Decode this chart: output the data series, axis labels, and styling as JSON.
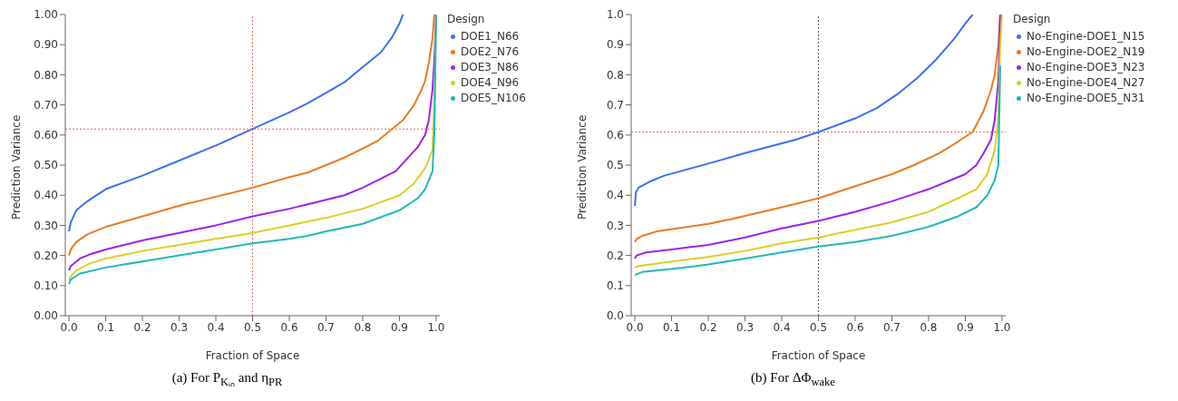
{
  "chart_data": [
    {
      "type": "line",
      "xlabel": "Fraction of Space",
      "ylabel": "Prediction Variance",
      "legend_title": "Design",
      "legend": "right",
      "marker": "none",
      "line_style": "solid",
      "xlim": [
        -0.01,
        1.01
      ],
      "ylim": [
        0,
        1
      ],
      "xticks": [
        {
          "value": 0,
          "label": "0.0"
        },
        {
          "value": 0.1,
          "label": "0.1"
        },
        {
          "value": 0.2,
          "label": "0.2"
        },
        {
          "value": 0.3,
          "label": "0.3"
        },
        {
          "value": 0.4,
          "label": "0.4"
        },
        {
          "value": 0.5,
          "label": "0.5"
        },
        {
          "value": 0.6,
          "label": "0.6"
        },
        {
          "value": 0.7,
          "label": "0.7"
        },
        {
          "value": 0.8,
          "label": "0.8"
        },
        {
          "value": 0.9,
          "label": "0.9"
        },
        {
          "value": 1,
          "label": "1.0"
        }
      ],
      "yticks": [
        {
          "value": 0,
          "label": "0.00"
        },
        {
          "value": 0.1,
          "label": "0.10"
        },
        {
          "value": 0.2,
          "label": "0.20"
        },
        {
          "value": 0.3,
          "label": "0.30"
        },
        {
          "value": 0.4,
          "label": "0.40"
        },
        {
          "value": 0.5,
          "label": "0.50"
        },
        {
          "value": 0.6,
          "label": "0.60"
        },
        {
          "value": 0.7,
          "label": "0.70"
        },
        {
          "value": 0.8,
          "label": "0.80"
        },
        {
          "value": 0.9,
          "label": "0.90"
        },
        {
          "value": 1,
          "label": "1.00"
        }
      ],
      "ref_lines": [
        {
          "axis": "x",
          "value": 0.5,
          "color": "#e06666",
          "line_style": "dotted"
        },
        {
          "axis": "y",
          "value": 0.62,
          "color": "#e06666",
          "line_style": "dotted"
        }
      ],
      "annotations": [
        "(a) For P$_{Kᵢₙ}$ and η$_{PR}$"
      ],
      "series": [
        {
          "name": "DOE1_N66",
          "color": "#3a6ff7",
          "x": [
            0,
            0.005,
            0.02,
            0.05,
            0.1,
            0.2,
            0.3,
            0.4,
            0.5,
            0.6,
            0.65,
            0.7,
            0.75,
            0.8,
            0.85,
            0.88,
            0.9,
            0.91
          ],
          "values": [
            0.28,
            0.31,
            0.35,
            0.38,
            0.42,
            0.465,
            0.515,
            0.565,
            0.62,
            0.675,
            0.705,
            0.74,
            0.775,
            0.825,
            0.875,
            0.925,
            0.97,
            1.0
          ]
        },
        {
          "name": "DOE2_N76",
          "color": "#ee7a1c",
          "x": [
            0,
            0.005,
            0.02,
            0.05,
            0.1,
            0.2,
            0.3,
            0.4,
            0.5,
            0.6,
            0.65,
            0.7,
            0.75,
            0.8,
            0.84,
            0.88,
            0.91,
            0.94,
            0.96,
            0.97,
            0.98,
            0.99,
            0.995
          ],
          "values": [
            0.2,
            0.22,
            0.245,
            0.27,
            0.295,
            0.33,
            0.365,
            0.395,
            0.425,
            0.46,
            0.475,
            0.5,
            0.525,
            0.555,
            0.58,
            0.62,
            0.65,
            0.7,
            0.75,
            0.78,
            0.84,
            0.92,
            1.0
          ]
        },
        {
          "name": "DOE3_N86",
          "color": "#a020f0",
          "x": [
            0,
            0.005,
            0.03,
            0.06,
            0.1,
            0.2,
            0.3,
            0.4,
            0.5,
            0.6,
            0.65,
            0.75,
            0.8,
            0.85,
            0.89,
            0.92,
            0.95,
            0.97,
            0.98,
            0.99,
            0.995,
            1.0
          ],
          "values": [
            0.15,
            0.165,
            0.19,
            0.205,
            0.22,
            0.25,
            0.275,
            0.3,
            0.33,
            0.355,
            0.37,
            0.4,
            0.425,
            0.455,
            0.48,
            0.52,
            0.56,
            0.6,
            0.65,
            0.75,
            0.85,
            1.0
          ]
        },
        {
          "name": "DOE4_N96",
          "color": "#d9d020",
          "x": [
            0,
            0.005,
            0.02,
            0.06,
            0.1,
            0.2,
            0.3,
            0.4,
            0.5,
            0.6,
            0.7,
            0.8,
            0.9,
            0.94,
            0.97,
            0.99,
            0.995,
            1.0
          ],
          "values": [
            0.12,
            0.13,
            0.15,
            0.175,
            0.19,
            0.215,
            0.235,
            0.255,
            0.275,
            0.3,
            0.325,
            0.355,
            0.4,
            0.44,
            0.49,
            0.55,
            0.7,
            1.0
          ]
        },
        {
          "name": "DOE5_N106",
          "color": "#20b8b8",
          "x": [
            0,
            0.005,
            0.03,
            0.1,
            0.15,
            0.2,
            0.3,
            0.4,
            0.5,
            0.6,
            0.65,
            0.7,
            0.8,
            0.9,
            0.95,
            0.97,
            0.99,
            0.995,
            1.0
          ],
          "values": [
            0.105,
            0.12,
            0.14,
            0.16,
            0.17,
            0.18,
            0.2,
            0.22,
            0.24,
            0.255,
            0.265,
            0.28,
            0.305,
            0.35,
            0.39,
            0.42,
            0.48,
            0.6,
            1.0
          ]
        }
      ]
    },
    {
      "type": "line",
      "xlabel": "Fraction of Space",
      "ylabel": "Prediction Variance",
      "legend_title": "Design",
      "legend": "right",
      "marker": "none",
      "line_style": "solid",
      "xlim": [
        -0.01,
        1.01
      ],
      "ylim": [
        0,
        1
      ],
      "xticks": [
        {
          "value": 0,
          "label": "0.0"
        },
        {
          "value": 0.1,
          "label": "0.1"
        },
        {
          "value": 0.2,
          "label": "0.2"
        },
        {
          "value": 0.3,
          "label": "0.3"
        },
        {
          "value": 0.4,
          "label": "0.4"
        },
        {
          "value": 0.5,
          "label": "0.5"
        },
        {
          "value": 0.6,
          "label": "0.6"
        },
        {
          "value": 0.7,
          "label": "0.7"
        },
        {
          "value": 0.8,
          "label": "0.8"
        },
        {
          "value": 0.9,
          "label": "0.9"
        },
        {
          "value": 1,
          "label": "1.0"
        }
      ],
      "yticks": [
        {
          "value": 0,
          "label": "0.0"
        },
        {
          "value": 0.1,
          "label": "0.1"
        },
        {
          "value": 0.2,
          "label": "0.2"
        },
        {
          "value": 0.3,
          "label": "0.3"
        },
        {
          "value": 0.4,
          "label": "0.4"
        },
        {
          "value": 0.5,
          "label": "0.5"
        },
        {
          "value": 0.6,
          "label": "0.6"
        },
        {
          "value": 0.7,
          "label": "0.7"
        },
        {
          "value": 0.8,
          "label": "0.8"
        },
        {
          "value": 0.9,
          "label": "0.9"
        },
        {
          "value": 1,
          "label": "1.0"
        }
      ],
      "ref_lines": [
        {
          "axis": "x",
          "value": 0.5,
          "color": "#555555",
          "line_style": "dotted"
        },
        {
          "axis": "y",
          "value": 0.61,
          "color": "#e06666",
          "line_style": "dotted"
        }
      ],
      "annotations": [
        "(b) For ΔΦ$_{wake}$"
      ],
      "series": [
        {
          "name": "No-Engine-DOE1_N15",
          "color": "#3a6ff7",
          "x": [
            0,
            0.003,
            0.01,
            0.04,
            0.08,
            0.2,
            0.3,
            0.44,
            0.5,
            0.6,
            0.66,
            0.72,
            0.77,
            0.82,
            0.87,
            0.9,
            0.92
          ],
          "values": [
            0.365,
            0.41,
            0.425,
            0.445,
            0.465,
            0.505,
            0.54,
            0.585,
            0.61,
            0.655,
            0.69,
            0.74,
            0.79,
            0.85,
            0.92,
            0.97,
            1.0
          ]
        },
        {
          "name": "No-Engine-DOE2_N19",
          "color": "#ee7a1c",
          "x": [
            0,
            0.005,
            0.02,
            0.06,
            0.2,
            0.26,
            0.4,
            0.5,
            0.6,
            0.7,
            0.76,
            0.83,
            0.87,
            0.92,
            0.95,
            0.97,
            0.98,
            0.99,
            0.995
          ],
          "values": [
            0.245,
            0.255,
            0.265,
            0.28,
            0.305,
            0.32,
            0.36,
            0.39,
            0.43,
            0.47,
            0.5,
            0.54,
            0.57,
            0.61,
            0.68,
            0.75,
            0.8,
            0.9,
            1.0
          ]
        },
        {
          "name": "No-Engine-DOE3_N23",
          "color": "#a020f0",
          "x": [
            0,
            0.005,
            0.03,
            0.1,
            0.2,
            0.3,
            0.4,
            0.5,
            0.6,
            0.7,
            0.8,
            0.85,
            0.9,
            0.93,
            0.95,
            0.97,
            0.98,
            0.99,
            0.995
          ],
          "values": [
            0.19,
            0.2,
            0.21,
            0.22,
            0.235,
            0.26,
            0.29,
            0.315,
            0.345,
            0.38,
            0.42,
            0.445,
            0.47,
            0.5,
            0.54,
            0.585,
            0.65,
            0.78,
            1.0
          ]
        },
        {
          "name": "No-Engine-DOE4_N27",
          "color": "#d9d020",
          "x": [
            0,
            0.01,
            0.1,
            0.2,
            0.3,
            0.4,
            0.5,
            0.6,
            0.7,
            0.8,
            0.88,
            0.93,
            0.96,
            0.98,
            0.99,
            0.995,
            1.0
          ],
          "values": [
            0.16,
            0.165,
            0.18,
            0.195,
            0.215,
            0.24,
            0.26,
            0.285,
            0.31,
            0.345,
            0.39,
            0.42,
            0.47,
            0.55,
            0.65,
            0.9,
            1.0
          ]
        },
        {
          "name": "No-Engine-DOE5_N31",
          "color": "#20b8b8",
          "x": [
            0,
            0.02,
            0.1,
            0.2,
            0.3,
            0.4,
            0.5,
            0.6,
            0.7,
            0.8,
            0.88,
            0.93,
            0.96,
            0.98,
            0.99,
            0.995
          ],
          "values": [
            0.135,
            0.145,
            0.155,
            0.17,
            0.19,
            0.21,
            0.23,
            0.245,
            0.265,
            0.295,
            0.33,
            0.36,
            0.4,
            0.45,
            0.5,
            0.83
          ]
        }
      ]
    }
  ]
}
